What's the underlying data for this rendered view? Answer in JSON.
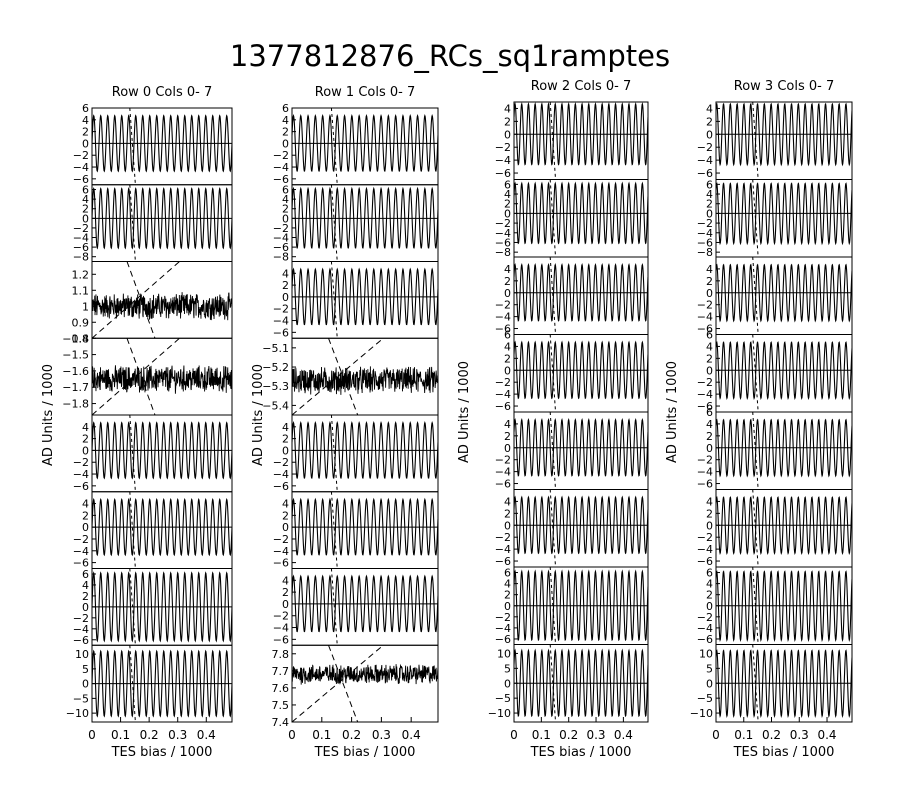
{
  "title": "1377812876_RCs_sq1ramptes",
  "chart_data": [
    {
      "type": "line",
      "title": "Row  0  Cols  0- 7",
      "xlabel": "TES bias / 1000",
      "ylabel": "AD Units / 1000",
      "xlim": [
        0,
        0.49
      ],
      "xticks": [
        "0",
        "0.1",
        "0.2",
        "0.3",
        "0.4"
      ],
      "panels": [
        {
          "kind": "osc",
          "amp": 4.7,
          "mid": 0,
          "ylim": [
            -7,
            6
          ],
          "yticks": [
            "6",
            "4",
            "2",
            "0",
            "-2",
            "-4",
            "-6"
          ]
        },
        {
          "kind": "osc",
          "amp": 6.2,
          "mid": 0,
          "ylim": [
            -9,
            7
          ],
          "yticks": [
            "6",
            "4",
            "2",
            "0",
            "-2",
            "-4",
            "-6",
            "-8"
          ]
        },
        {
          "kind": "noise",
          "mid": 1.0,
          "amp": 0.07,
          "ylim": [
            0.8,
            1.28
          ],
          "yticks": [
            "1.2",
            "1.1",
            "1",
            "0.9",
            "0.8"
          ]
        },
        {
          "kind": "noise",
          "mid": -1.65,
          "amp": 0.07,
          "ylim": [
            -1.87,
            -1.4
          ],
          "yticks": [
            "-1.4",
            "-1.5",
            "-1.6",
            "-1.7",
            "-1.8"
          ]
        },
        {
          "kind": "osc",
          "amp": 4.7,
          "mid": 0,
          "ylim": [
            -7,
            6
          ],
          "yticks": [
            "4",
            "2",
            "0",
            "-2",
            "-4",
            "-6"
          ]
        },
        {
          "kind": "osc",
          "amp": 4.7,
          "mid": 0,
          "ylim": [
            -7,
            6
          ],
          "yticks": [
            "4",
            "2",
            "0",
            "-2",
            "-4",
            "-6"
          ]
        },
        {
          "kind": "osc",
          "amp": 6.2,
          "mid": 0,
          "ylim": [
            -7,
            7
          ],
          "yticks": [
            "6",
            "4",
            "2",
            "0",
            "-2",
            "-4",
            "-6"
          ]
        },
        {
          "kind": "osc",
          "amp": 11,
          "mid": 0,
          "ylim": [
            -13,
            13
          ],
          "yticks": [
            "10",
            "5",
            "0",
            "-5",
            "-10"
          ]
        }
      ]
    },
    {
      "type": "line",
      "title": "Row  1  Cols  0- 7",
      "xlabel": "TES bias / 1000",
      "ylabel": "AD Units / 1000",
      "xlim": [
        0,
        0.49
      ],
      "xticks": [
        "0",
        "0.1",
        "0.2",
        "0.3",
        "0.4"
      ],
      "panels": [
        {
          "kind": "osc",
          "amp": 4.7,
          "mid": 0,
          "ylim": [
            -7,
            6
          ],
          "yticks": [
            "6",
            "4",
            "2",
            "0",
            "-2",
            "-4",
            "-6"
          ]
        },
        {
          "kind": "osc",
          "amp": 6.2,
          "mid": 0,
          "ylim": [
            -9,
            7
          ],
          "yticks": [
            "6",
            "4",
            "2",
            "0",
            "-2",
            "-4",
            "-6",
            "-8"
          ]
        },
        {
          "kind": "osc",
          "amp": 4.7,
          "mid": 0,
          "ylim": [
            -7,
            6
          ],
          "yticks": [
            "4",
            "2",
            "0",
            "-2",
            "-4",
            "-6"
          ]
        },
        {
          "kind": "noise",
          "mid": -5.27,
          "amp": 0.06,
          "ylim": [
            -5.45,
            -5.05
          ],
          "yticks": [
            "-5.1",
            "-5.2",
            "-5.3",
            "-5.4"
          ]
        },
        {
          "kind": "osc",
          "amp": 4.7,
          "mid": 0,
          "ylim": [
            -7,
            6
          ],
          "yticks": [
            "4",
            "2",
            "0",
            "-2",
            "-4",
            "-6"
          ]
        },
        {
          "kind": "osc",
          "amp": 4.7,
          "mid": 0,
          "ylim": [
            -7,
            6
          ],
          "yticks": [
            "4",
            "2",
            "0",
            "-2",
            "-4",
            "-6"
          ]
        },
        {
          "kind": "osc",
          "amp": 4.7,
          "mid": 0,
          "ylim": [
            -7,
            6
          ],
          "yticks": [
            "4",
            "2",
            "0",
            "-2",
            "-4",
            "-6"
          ]
        },
        {
          "kind": "noise",
          "mid": 7.68,
          "amp": 0.05,
          "ylim": [
            7.4,
            7.85
          ],
          "yticks": [
            "7.8",
            "7.7",
            "7.6",
            "7.5",
            "7.4"
          ]
        }
      ]
    },
    {
      "type": "line",
      "title": "Row  2  Cols  0- 7",
      "xlabel": "TES bias / 1000",
      "ylabel": "AD Units / 1000",
      "xlim": [
        0,
        0.49
      ],
      "xticks": [
        "0",
        "0.1",
        "0.2",
        "0.3",
        "0.4"
      ],
      "panels": [
        {
          "kind": "osc",
          "amp": 4.7,
          "mid": 0,
          "ylim": [
            -7,
            5
          ],
          "yticks": [
            "4",
            "2",
            "0",
            "-2",
            "-4",
            "-6"
          ]
        },
        {
          "kind": "osc",
          "amp": 6.2,
          "mid": 0,
          "ylim": [
            -9,
            7
          ],
          "yticks": [
            "6",
            "4",
            "2",
            "0",
            "-2",
            "-4",
            "-6",
            "-8"
          ]
        },
        {
          "kind": "osc",
          "amp": 4.7,
          "mid": 0,
          "ylim": [
            -7,
            6
          ],
          "yticks": [
            "4",
            "2",
            "0",
            "-2",
            "-4",
            "-6"
          ]
        },
        {
          "kind": "osc",
          "amp": 4.7,
          "mid": 0,
          "ylim": [
            -7,
            6
          ],
          "yticks": [
            "6",
            "4",
            "2",
            "0",
            "-2",
            "-4",
            "-6"
          ]
        },
        {
          "kind": "osc",
          "amp": 4.7,
          "mid": 0,
          "ylim": [
            -7,
            6
          ],
          "yticks": [
            "4",
            "2",
            "0",
            "-2",
            "-4",
            "-6"
          ]
        },
        {
          "kind": "osc",
          "amp": 4.7,
          "mid": 0,
          "ylim": [
            -7,
            6
          ],
          "yticks": [
            "4",
            "2",
            "0",
            "-2",
            "-4",
            "-6"
          ]
        },
        {
          "kind": "osc",
          "amp": 6.2,
          "mid": 0,
          "ylim": [
            -7,
            7
          ],
          "yticks": [
            "6",
            "4",
            "2",
            "0",
            "-2",
            "-4",
            "-6"
          ]
        },
        {
          "kind": "osc",
          "amp": 11,
          "mid": 0,
          "ylim": [
            -13,
            13
          ],
          "yticks": [
            "10",
            "5",
            "0",
            "-5",
            "-10"
          ]
        }
      ]
    },
    {
      "type": "line",
      "title": "Row  3  Cols  0- 7",
      "xlabel": "TES bias / 1000",
      "ylabel": "AD Units / 1000",
      "xlim": [
        0,
        0.49
      ],
      "xticks": [
        "0",
        "0.1",
        "0.2",
        "0.3",
        "0.4"
      ],
      "panels": [
        {
          "kind": "osc",
          "amp": 4.7,
          "mid": 0,
          "ylim": [
            -7,
            5
          ],
          "yticks": [
            "4",
            "2",
            "0",
            "-2",
            "-4",
            "-6"
          ]
        },
        {
          "kind": "osc",
          "amp": 6.2,
          "mid": 0,
          "ylim": [
            -9,
            7
          ],
          "yticks": [
            "6",
            "4",
            "2",
            "0",
            "-2",
            "-4",
            "-6",
            "-8"
          ]
        },
        {
          "kind": "osc",
          "amp": 4.7,
          "mid": 0,
          "ylim": [
            -7,
            6
          ],
          "yticks": [
            "4",
            "2",
            "0",
            "-2",
            "-4",
            "-6"
          ]
        },
        {
          "kind": "osc",
          "amp": 4.7,
          "mid": 0,
          "ylim": [
            -7,
            6
          ],
          "yticks": [
            "6",
            "4",
            "2",
            "0",
            "-2",
            "-4",
            "-6"
          ]
        },
        {
          "kind": "osc",
          "amp": 4.7,
          "mid": 0,
          "ylim": [
            -7,
            6
          ],
          "yticks": [
            "6",
            "4",
            "2",
            "0",
            "-2",
            "-4",
            "-6"
          ]
        },
        {
          "kind": "osc",
          "amp": 4.7,
          "mid": 0,
          "ylim": [
            -7,
            6
          ],
          "yticks": [
            "4",
            "2",
            "0",
            "-2",
            "-4",
            "-6"
          ]
        },
        {
          "kind": "osc",
          "amp": 6.2,
          "mid": 0,
          "ylim": [
            -7,
            7
          ],
          "yticks": [
            "6",
            "4",
            "2",
            "0",
            "-2",
            "-4",
            "-6"
          ]
        },
        {
          "kind": "osc",
          "amp": 11,
          "mid": 0,
          "ylim": [
            -13,
            13
          ],
          "yticks": [
            "10",
            "5",
            "0",
            "-5",
            "-10"
          ]
        }
      ]
    }
  ]
}
